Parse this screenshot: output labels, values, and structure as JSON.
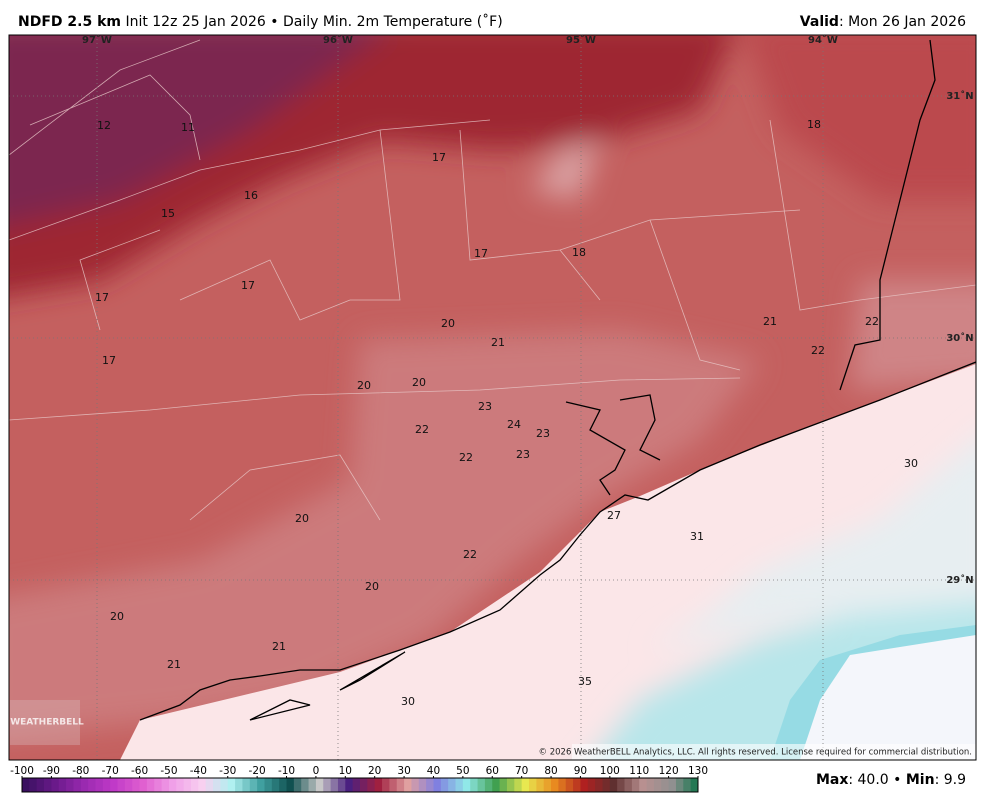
{
  "header": {
    "title": "NDFD 2.5 km",
    "subtitle": "Init 12z 25 Jan 2026 • Daily Min. 2m Temperature (˚F)",
    "valid_label": "Valid",
    "valid_date": ": Mon 26 Jan 2026"
  },
  "map": {
    "longitudes": [
      "97˚W",
      "96˚W",
      "95˚W",
      "94˚W"
    ],
    "latitudes": [
      "31˚N",
      "30˚N",
      "29˚N"
    ],
    "station_values": [
      12,
      11,
      17,
      18,
      16,
      15,
      17,
      18,
      17,
      17,
      17,
      20,
      21,
      21,
      22,
      22,
      20,
      20,
      23,
      24,
      23,
      22,
      22,
      23,
      30,
      20,
      27,
      31,
      22,
      20,
      20,
      21,
      21,
      35,
      30
    ],
    "copyright": "© 2026 WeatherBELL Analytics, LLC. All rights reserved. License required for commercial distribution."
  },
  "colorbar": {
    "ticks": [
      -100,
      -90,
      -80,
      -70,
      -60,
      -50,
      -40,
      -30,
      -20,
      -10,
      0,
      10,
      20,
      30,
      40,
      50,
      60,
      70,
      80,
      90,
      100,
      110,
      120,
      130
    ]
  },
  "footer": {
    "max_label": "Max",
    "max_value": ": 40.0 • ",
    "min_label": "Min",
    "min_value": ": 9.9"
  }
}
